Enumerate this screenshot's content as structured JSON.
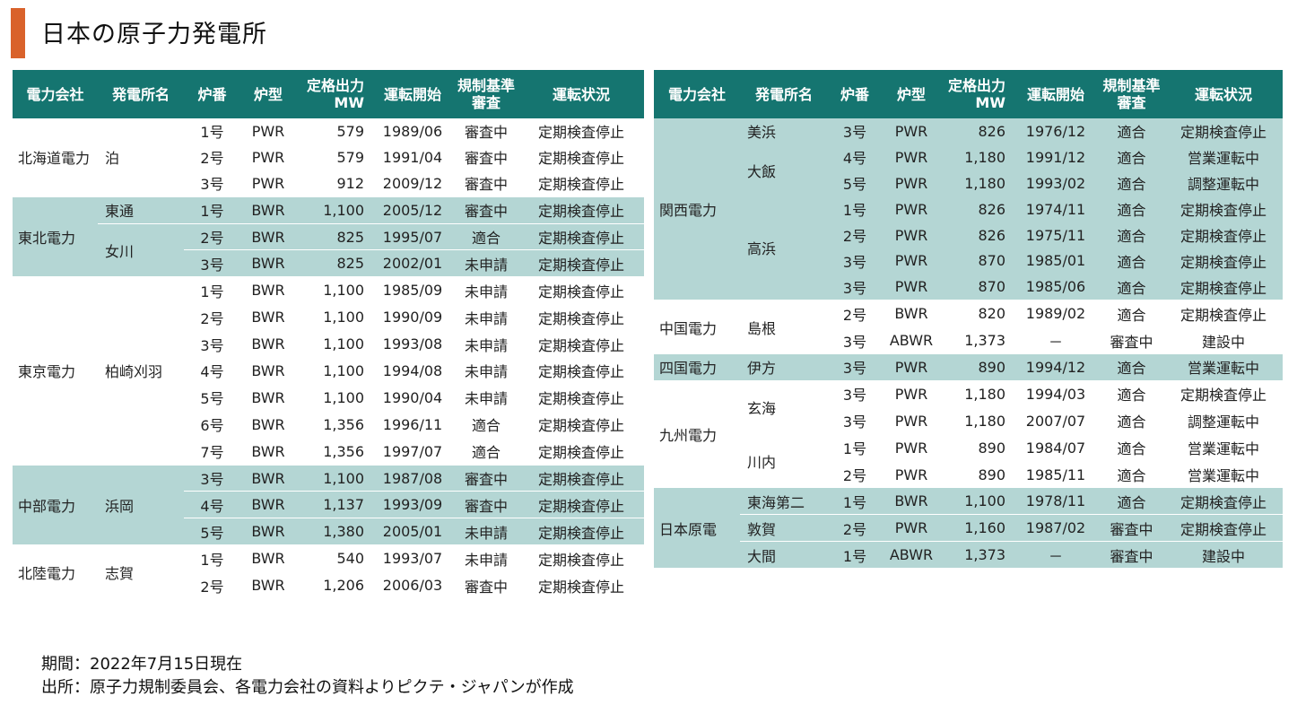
{
  "title": "日本の原子力発電所",
  "colors": {
    "accent": "#d9622b",
    "header": "#157570",
    "shade": "#b4d6d4"
  },
  "headers": {
    "company": "電力会社",
    "plant": "発電所名",
    "unit": "炉番",
    "type": "炉型",
    "output_line1": "定格出力",
    "output_line2": "MW",
    "start": "運転開始",
    "review_line1": "規制基準",
    "review_line2": "審査",
    "status": "運転状況"
  },
  "left_groups": [
    {
      "company": "北海道電力",
      "shaded": false,
      "plants": [
        {
          "name": "泊",
          "rows": [
            {
              "unit": "1号",
              "type": "PWR",
              "output": "579",
              "start": "1989/06",
              "review": "審査中",
              "status": "定期検査停止"
            },
            {
              "unit": "2号",
              "type": "PWR",
              "output": "579",
              "start": "1991/04",
              "review": "審査中",
              "status": "定期検査停止"
            },
            {
              "unit": "3号",
              "type": "PWR",
              "output": "912",
              "start": "2009/12",
              "review": "審査中",
              "status": "定期検査停止"
            }
          ]
        }
      ]
    },
    {
      "company": "東北電力",
      "shaded": true,
      "plants": [
        {
          "name": "東通",
          "rows": [
            {
              "unit": "1号",
              "type": "BWR",
              "output": "1,100",
              "start": "2005/12",
              "review": "審査中",
              "status": "定期検査停止"
            }
          ]
        },
        {
          "name": "女川",
          "rows": [
            {
              "unit": "2号",
              "type": "BWR",
              "output": "825",
              "start": "1995/07",
              "review": "適合",
              "status": "定期検査停止"
            },
            {
              "unit": "3号",
              "type": "BWR",
              "output": "825",
              "start": "2002/01",
              "review": "未申請",
              "status": "定期検査停止"
            }
          ]
        }
      ]
    },
    {
      "company": "東京電力",
      "shaded": false,
      "plants": [
        {
          "name": "柏崎刈羽",
          "rows": [
            {
              "unit": "1号",
              "type": "BWR",
              "output": "1,100",
              "start": "1985/09",
              "review": "未申請",
              "status": "定期検査停止"
            },
            {
              "unit": "2号",
              "type": "BWR",
              "output": "1,100",
              "start": "1990/09",
              "review": "未申請",
              "status": "定期検査停止"
            },
            {
              "unit": "3号",
              "type": "BWR",
              "output": "1,100",
              "start": "1993/08",
              "review": "未申請",
              "status": "定期検査停止"
            },
            {
              "unit": "4号",
              "type": "BWR",
              "output": "1,100",
              "start": "1994/08",
              "review": "未申請",
              "status": "定期検査停止"
            },
            {
              "unit": "5号",
              "type": "BWR",
              "output": "1,100",
              "start": "1990/04",
              "review": "未申請",
              "status": "定期検査停止"
            },
            {
              "unit": "6号",
              "type": "BWR",
              "output": "1,356",
              "start": "1996/11",
              "review": "適合",
              "status": "定期検査停止"
            },
            {
              "unit": "7号",
              "type": "BWR",
              "output": "1,356",
              "start": "1997/07",
              "review": "適合",
              "status": "定期検査停止"
            }
          ]
        }
      ]
    },
    {
      "company": "中部電力",
      "shaded": true,
      "plants": [
        {
          "name": "浜岡",
          "rows": [
            {
              "unit": "3号",
              "type": "BWR",
              "output": "1,100",
              "start": "1987/08",
              "review": "審査中",
              "status": "定期検査停止"
            },
            {
              "unit": "4号",
              "type": "BWR",
              "output": "1,137",
              "start": "1993/09",
              "review": "審査中",
              "status": "定期検査停止"
            },
            {
              "unit": "5号",
              "type": "BWR",
              "output": "1,380",
              "start": "2005/01",
              "review": "未申請",
              "status": "定期検査停止"
            }
          ]
        }
      ]
    },
    {
      "company": "北陸電力",
      "shaded": false,
      "plants": [
        {
          "name": "志賀",
          "rows": [
            {
              "unit": "1号",
              "type": "BWR",
              "output": "540",
              "start": "1993/07",
              "review": "未申請",
              "status": "定期検査停止"
            },
            {
              "unit": "2号",
              "type": "BWR",
              "output": "1,206",
              "start": "2006/03",
              "review": "審査中",
              "status": "定期検査停止"
            }
          ]
        }
      ]
    }
  ],
  "right_groups": [
    {
      "company": "関西電力",
      "shaded": true,
      "plants": [
        {
          "name": "美浜",
          "rows": [
            {
              "unit": "3号",
              "type": "PWR",
              "output": "826",
              "start": "1976/12",
              "review": "適合",
              "status": "定期検査停止"
            }
          ]
        },
        {
          "name": "大飯",
          "rows": [
            {
              "unit": "4号",
              "type": "PWR",
              "output": "1,180",
              "start": "1991/12",
              "review": "適合",
              "status": "営業運転中"
            },
            {
              "unit": "5号",
              "type": "PWR",
              "output": "1,180",
              "start": "1993/02",
              "review": "適合",
              "status": "調整運転中"
            }
          ]
        },
        {
          "name": "高浜",
          "rows": [
            {
              "unit": "1号",
              "type": "PWR",
              "output": "826",
              "start": "1974/11",
              "review": "適合",
              "status": "定期検査停止"
            },
            {
              "unit": "2号",
              "type": "PWR",
              "output": "826",
              "start": "1975/11",
              "review": "適合",
              "status": "定期検査停止"
            },
            {
              "unit": "3号",
              "type": "PWR",
              "output": "870",
              "start": "1985/01",
              "review": "適合",
              "status": "定期検査停止"
            },
            {
              "unit": "3号",
              "type": "PWR",
              "output": "870",
              "start": "1985/06",
              "review": "適合",
              "status": "定期検査停止"
            }
          ]
        }
      ]
    },
    {
      "company": "中国電力",
      "shaded": false,
      "plants": [
        {
          "name": "島根",
          "rows": [
            {
              "unit": "2号",
              "type": "BWR",
              "output": "820",
              "start": "1989/02",
              "review": "適合",
              "status": "定期検査停止"
            },
            {
              "unit": "3号",
              "type": "ABWR",
              "output": "1,373",
              "start": "－",
              "review": "審査中",
              "status": "建設中"
            }
          ]
        }
      ]
    },
    {
      "company": "四国電力",
      "shaded": true,
      "plants": [
        {
          "name": "伊方",
          "rows": [
            {
              "unit": "3号",
              "type": "PWR",
              "output": "890",
              "start": "1994/12",
              "review": "適合",
              "status": "営業運転中"
            }
          ]
        }
      ]
    },
    {
      "company": "九州電力",
      "shaded": false,
      "plants": [
        {
          "name": "玄海",
          "rows": [
            {
              "unit": "3号",
              "type": "PWR",
              "output": "1,180",
              "start": "1994/03",
              "review": "適合",
              "status": "定期検査停止"
            },
            {
              "unit": "3号",
              "type": "PWR",
              "output": "1,180",
              "start": "2007/07",
              "review": "適合",
              "status": "調整運転中"
            }
          ]
        },
        {
          "name": "川内",
          "rows": [
            {
              "unit": "1号",
              "type": "PWR",
              "output": "890",
              "start": "1984/07",
              "review": "適合",
              "status": "営業運転中"
            },
            {
              "unit": "2号",
              "type": "PWR",
              "output": "890",
              "start": "1985/11",
              "review": "適合",
              "status": "営業運転中"
            }
          ]
        }
      ]
    },
    {
      "company": "日本原電",
      "shaded": true,
      "plants": [
        {
          "name": "東海第二",
          "rows": [
            {
              "unit": "1号",
              "type": "BWR",
              "output": "1,100",
              "start": "1978/11",
              "review": "適合",
              "status": "定期検査停止"
            }
          ]
        },
        {
          "name": "敦賀",
          "rows": [
            {
              "unit": "2号",
              "type": "PWR",
              "output": "1,160",
              "start": "1987/02",
              "review": "審査中",
              "status": "定期検査停止"
            }
          ]
        },
        {
          "name": "大間",
          "rows": [
            {
              "unit": "1号",
              "type": "ABWR",
              "output": "1,373",
              "start": "－",
              "review": "審査中",
              "status": "建設中"
            }
          ]
        }
      ]
    }
  ],
  "notes": {
    "period": "期間：2022年7月15日現在",
    "source": "出所：原子力規制委員会、各電力会社の資料よりピクテ・ジャパンが作成"
  }
}
